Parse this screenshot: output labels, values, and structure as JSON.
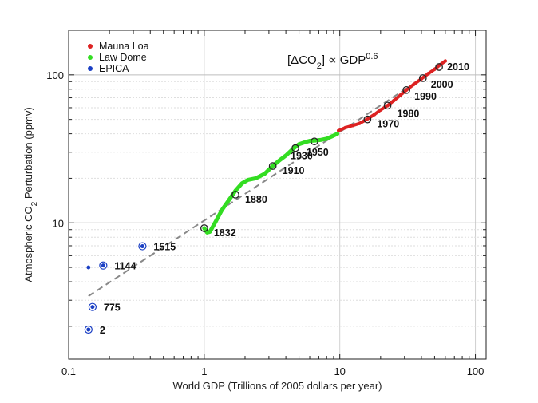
{
  "chart_data": {
    "type": "scatter",
    "title": "",
    "xlabel": "World GDP (Trillions of 2005 dollars per year)",
    "ylabel_parts": {
      "pre": "Atmospheric CO",
      "sub": "2",
      "post": " Perturbation (ppmv)"
    },
    "xscale": "log",
    "yscale": "log",
    "xlim": [
      0.1,
      120
    ],
    "ylim": [
      1.2,
      200
    ],
    "x_ticks": [
      {
        "value": 0.1,
        "label": "0.1"
      },
      {
        "value": 1,
        "label": "1"
      },
      {
        "value": 10,
        "label": "10"
      },
      {
        "value": 100,
        "label": "100"
      }
    ],
    "y_ticks": [
      {
        "value": 10,
        "label": "10"
      },
      {
        "value": 100,
        "label": "100"
      }
    ],
    "grid": true,
    "legend_placement": "top-left",
    "formula": {
      "open": "[",
      "delta": "Δ",
      "co": "CO",
      "sub": "2",
      "close": "]",
      "prop": "∝",
      "gdp": "GDP",
      "exp": "0.6"
    },
    "fit_line": {
      "exponent": 0.6,
      "x": [
        0.14,
        42
      ],
      "y": [
        3.2,
        97
      ],
      "color": "#888888",
      "style": "dashed"
    },
    "series": [
      {
        "name": "Mauna Loa",
        "color": "#dd2222",
        "x": [
          9.8,
          11,
          12.5,
          14,
          15.8,
          18,
          20,
          22.5,
          25,
          28,
          31,
          35,
          40,
          45,
          50,
          55,
          60
        ],
        "y": [
          42,
          44,
          45.5,
          47,
          50,
          54,
          58,
          62,
          67,
          73,
          79,
          86,
          94,
          102,
          109,
          117,
          124
        ]
      },
      {
        "name": "Law Dome",
        "color": "#33dd22",
        "x": [
          1.0,
          1.05,
          1.1,
          1.2,
          1.35,
          1.5,
          1.7,
          1.9,
          2.1,
          2.4,
          2.8,
          3.2,
          3.6,
          4.0,
          4.5,
          5.0,
          5.5,
          6.0,
          6.6,
          7.3,
          8.0,
          8.8,
          9.6
        ],
        "y": [
          9.2,
          8.6,
          8.7,
          10.0,
          12.2,
          14.0,
          16.5,
          18.5,
          19.5,
          20.0,
          21.5,
          24.2,
          26.5,
          28.5,
          31.5,
          34.0,
          35.0,
          35.8,
          36.0,
          36.4,
          37.0,
          38.5,
          40.0
        ]
      },
      {
        "name": "EPICA",
        "color": "#1a3fc4",
        "x": [
          0.14,
          0.14,
          0.15,
          0.18,
          0.35
        ],
        "y": [
          1.9,
          5.0,
          2.7,
          5.15,
          6.95
        ]
      }
    ],
    "markers": [
      {
        "label": "2",
        "x": 0.14,
        "y": 1.9
      },
      {
        "label": "775",
        "x": 0.15,
        "y": 2.7
      },
      {
        "label": "1144",
        "x": 0.18,
        "y": 5.15
      },
      {
        "label": "1515",
        "x": 0.35,
        "y": 6.95
      },
      {
        "label": "1832",
        "x": 1.0,
        "y": 9.2
      },
      {
        "label": "1880",
        "x": 1.7,
        "y": 15.5
      },
      {
        "label": "1910",
        "x": 3.2,
        "y": 24.2
      },
      {
        "label": "1930",
        "x": 4.7,
        "y": 32
      },
      {
        "label": "1950",
        "x": 6.5,
        "y": 35.5
      },
      {
        "label": "1970",
        "x": 16,
        "y": 50
      },
      {
        "label": "1980",
        "x": 22.5,
        "y": 62
      },
      {
        "label": "1990",
        "x": 31,
        "y": 79
      },
      {
        "label": "2000",
        "x": 41,
        "y": 95
      },
      {
        "label": "2010",
        "x": 54,
        "y": 113
      }
    ]
  }
}
